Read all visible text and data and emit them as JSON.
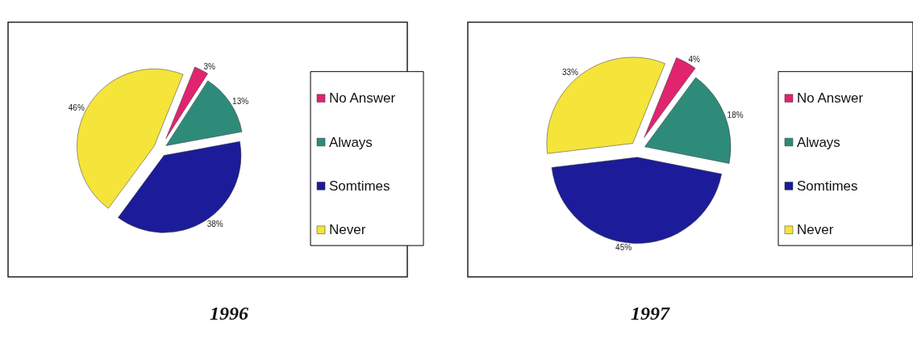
{
  "chart_data": [
    {
      "type": "pie",
      "title": "1996",
      "categories": [
        "No Answer",
        "Always",
        "Somtimes",
        "Never"
      ],
      "values": [
        3,
        13,
        38,
        46
      ],
      "value_labels": [
        "3%",
        "13%",
        "38%",
        "46%"
      ],
      "colors": [
        "#e0246e",
        "#2e8b7a",
        "#1c1c9a",
        "#f5e43a"
      ],
      "legend": "right"
    },
    {
      "type": "pie",
      "title": "1997",
      "categories": [
        "No Answer",
        "Always",
        "Somtimes",
        "Never"
      ],
      "values": [
        4,
        18,
        45,
        33
      ],
      "value_labels": [
        "4%",
        "18%",
        "45%",
        "33%"
      ],
      "colors": [
        "#e0246e",
        "#2e8b7a",
        "#1c1c9a",
        "#f5e43a"
      ],
      "legend": "right"
    }
  ]
}
